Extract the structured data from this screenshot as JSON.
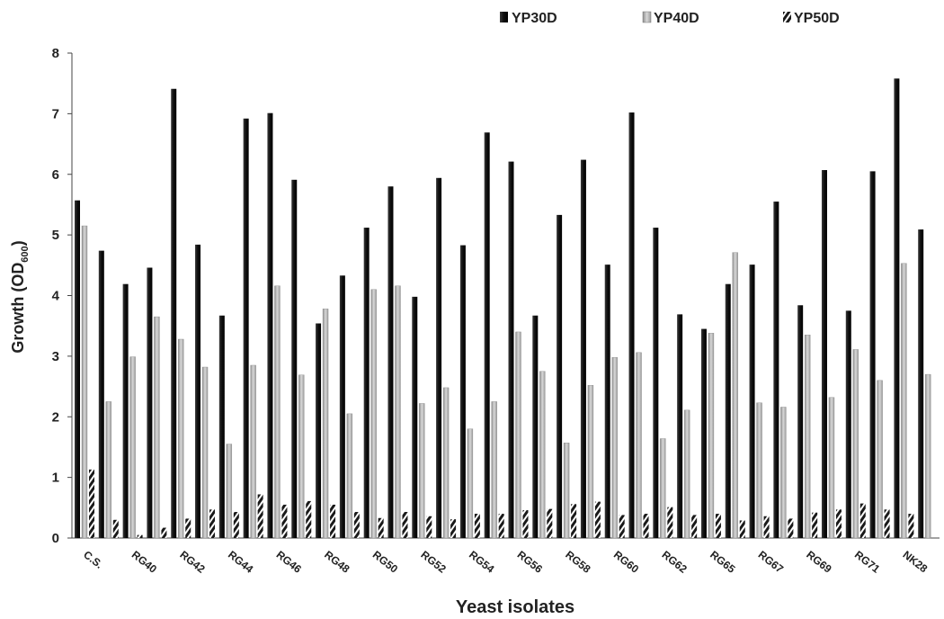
{
  "chart_data": {
    "type": "bar",
    "title": "",
    "xlabel": "Yeast isolates",
    "ylabel": "Growth (OD",
    "ylabel_subscript": "600",
    "ylabel_close": ")",
    "ylim": [
      0,
      8
    ],
    "yticks": [
      0,
      1,
      2,
      3,
      4,
      5,
      6,
      7,
      8
    ],
    "grid": false,
    "legend_position": "top-right",
    "categories": [
      "C.S.",
      "",
      "RG40",
      "",
      "RG42",
      "",
      "RG44",
      "",
      "RG46",
      "",
      "RG48",
      "",
      "RG50",
      "",
      "RG52",
      "",
      "RG54",
      "",
      "RG56",
      "",
      "RG58",
      "",
      "RG60",
      "",
      "RG62",
      "",
      "RG65",
      "",
      "RG67",
      "",
      "RG69",
      "",
      "RG71",
      "",
      "NK28",
      ""
    ],
    "series": [
      {
        "name": "YP30D",
        "color": "#1a1a1a",
        "values": [
          5.57,
          4.74,
          4.19,
          4.46,
          7.41,
          4.84,
          3.67,
          6.92,
          7.01,
          5.91,
          3.54,
          4.33,
          5.12,
          5.8,
          3.98,
          5.94,
          4.83,
          6.69,
          6.21,
          3.67,
          5.33,
          6.24,
          4.51,
          7.02,
          5.12,
          3.69,
          3.45,
          4.19,
          4.51,
          5.55,
          3.84,
          6.07,
          3.75,
          6.05,
          7.58,
          5.09
        ]
      },
      {
        "name": "YP40D",
        "color": "#a8a8a8",
        "values": [
          5.15,
          2.25,
          2.99,
          3.65,
          3.28,
          2.82,
          1.55,
          2.85,
          4.16,
          2.69,
          3.78,
          2.05,
          4.1,
          4.16,
          2.22,
          2.48,
          1.8,
          2.25,
          3.4,
          2.75,
          1.57,
          2.52,
          2.98,
          3.06,
          1.64,
          2.11,
          3.38,
          4.71,
          2.23,
          2.16,
          3.35,
          2.32,
          3.11,
          2.6,
          4.53,
          2.7
        ]
      },
      {
        "name": "YP50D",
        "color": "#555555",
        "values": [
          1.13,
          0.3,
          0.05,
          0.17,
          0.32,
          0.47,
          0.43,
          0.72,
          0.55,
          0.61,
          0.55,
          0.43,
          0.33,
          0.43,
          0.36,
          0.31,
          0.4,
          0.4,
          0.46,
          0.48,
          0.56,
          0.6,
          0.38,
          0.4,
          0.51,
          0.38,
          0.4,
          0.29,
          0.36,
          0.32,
          0.42,
          0.47,
          0.57,
          0.47,
          0.4,
          0
        ]
      }
    ]
  }
}
